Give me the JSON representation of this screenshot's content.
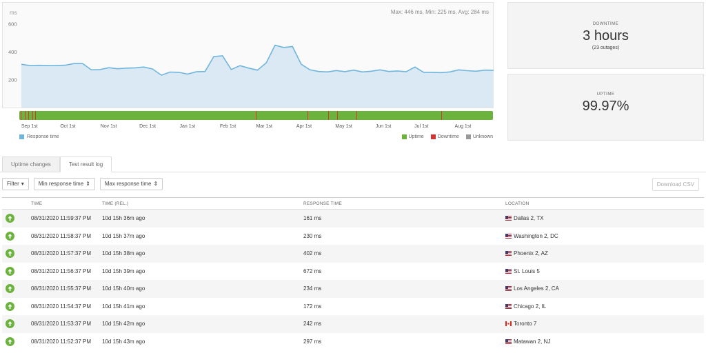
{
  "chart": {
    "unit": "ms",
    "stats": "Max: 446 ms, Min: 225 ms, Avg: 284 ms",
    "legend_response": "Response time",
    "legend_uptime": "Uptime",
    "legend_downtime": "Downtime",
    "legend_unknown": "Unknown",
    "y_ticks": [
      "600",
      "400",
      "200"
    ],
    "months": [
      "Sep 1st",
      "Oct 1st",
      "Nov 1st",
      "Dec 1st",
      "Jan 1st",
      "Feb 1st",
      "Mar 1st",
      "Apr 1st",
      "May 1st",
      "Jun 1st",
      "Jul 1st",
      "Aug 1st"
    ],
    "colors": {
      "line": "#6fb5dc",
      "fill": "#dbe9f4",
      "uptime": "#6cb33e",
      "downtime": "#d33333",
      "unknown": "#999999"
    }
  },
  "chart_data": {
    "type": "area",
    "title": "",
    "xlabel": "",
    "ylabel": "ms",
    "ylim": [
      0,
      750
    ],
    "series": [
      {
        "name": "Response time",
        "values": [
          310,
          300,
          302,
          300,
          300,
          303,
          315,
          315,
          270,
          272,
          285,
          278,
          282,
          284,
          290,
          276,
          232,
          254,
          252,
          240,
          256,
          258,
          365,
          370,
          272,
          300,
          282,
          268,
          320,
          446,
          430,
          437,
          310,
          270,
          258,
          255,
          265,
          257,
          268,
          255,
          260,
          270,
          258,
          262,
          256,
          290,
          252,
          252,
          250,
          255,
          270,
          264,
          260,
          268,
          266
        ]
      }
    ],
    "status_bar": {
      "start": "2020-08-31",
      "end": "2021-08-31",
      "downtime_dates": [
        "2020-09-01",
        "2020-09-04",
        "2020-09-07",
        "2020-09-10",
        "2020-09-12",
        "2021-03-01",
        "2021-04-10",
        "2021-04-26",
        "2021-05-03",
        "2021-05-18",
        "2021-07-22"
      ]
    }
  },
  "cards": {
    "downtime_label": "DOWNTIME",
    "downtime_value": "3 hours",
    "downtime_sub": "(23 outages)",
    "uptime_label": "UPTIME",
    "uptime_value": "99.97%"
  },
  "tabs": [
    "Uptime changes",
    "Test result log"
  ],
  "toolbar": {
    "filter": "Filter",
    "min_rt": "Min response time",
    "max_rt": "Max response time",
    "download": "Download CSV"
  },
  "table": {
    "headers": [
      "TIME",
      "TIME (REL.)",
      "RESPONSE TIME",
      "LOCATION"
    ],
    "rows": [
      {
        "time": "08/31/2020 11:59:37 PM",
        "rel": "10d 15h 36m ago",
        "rt": "161 ms",
        "location": "Dallas 2, TX",
        "flag": "us"
      },
      {
        "time": "08/31/2020 11:58:37 PM",
        "rel": "10d 15h 37m ago",
        "rt": "230 ms",
        "location": "Washington 2, DC",
        "flag": "us"
      },
      {
        "time": "08/31/2020 11:57:37 PM",
        "rel": "10d 15h 38m ago",
        "rt": "402 ms",
        "location": "Phoenix 2, AZ",
        "flag": "us"
      },
      {
        "time": "08/31/2020 11:56:37 PM",
        "rel": "10d 15h 39m ago",
        "rt": "672 ms",
        "location": "St. Louis 5",
        "flag": "us"
      },
      {
        "time": "08/31/2020 11:55:37 PM",
        "rel": "10d 15h 40m ago",
        "rt": "234 ms",
        "location": "Los Angeles 2, CA",
        "flag": "us"
      },
      {
        "time": "08/31/2020 11:54:37 PM",
        "rel": "10d 15h 41m ago",
        "rt": "172 ms",
        "location": "Chicago 2, IL",
        "flag": "us"
      },
      {
        "time": "08/31/2020 11:53:37 PM",
        "rel": "10d 15h 42m ago",
        "rt": "242 ms",
        "location": "Toronto 7",
        "flag": "ca"
      },
      {
        "time": "08/31/2020 11:52:37 PM",
        "rel": "10d 15h 43m ago",
        "rt": "297 ms",
        "location": "Matawan 2, NJ",
        "flag": "us"
      }
    ]
  }
}
